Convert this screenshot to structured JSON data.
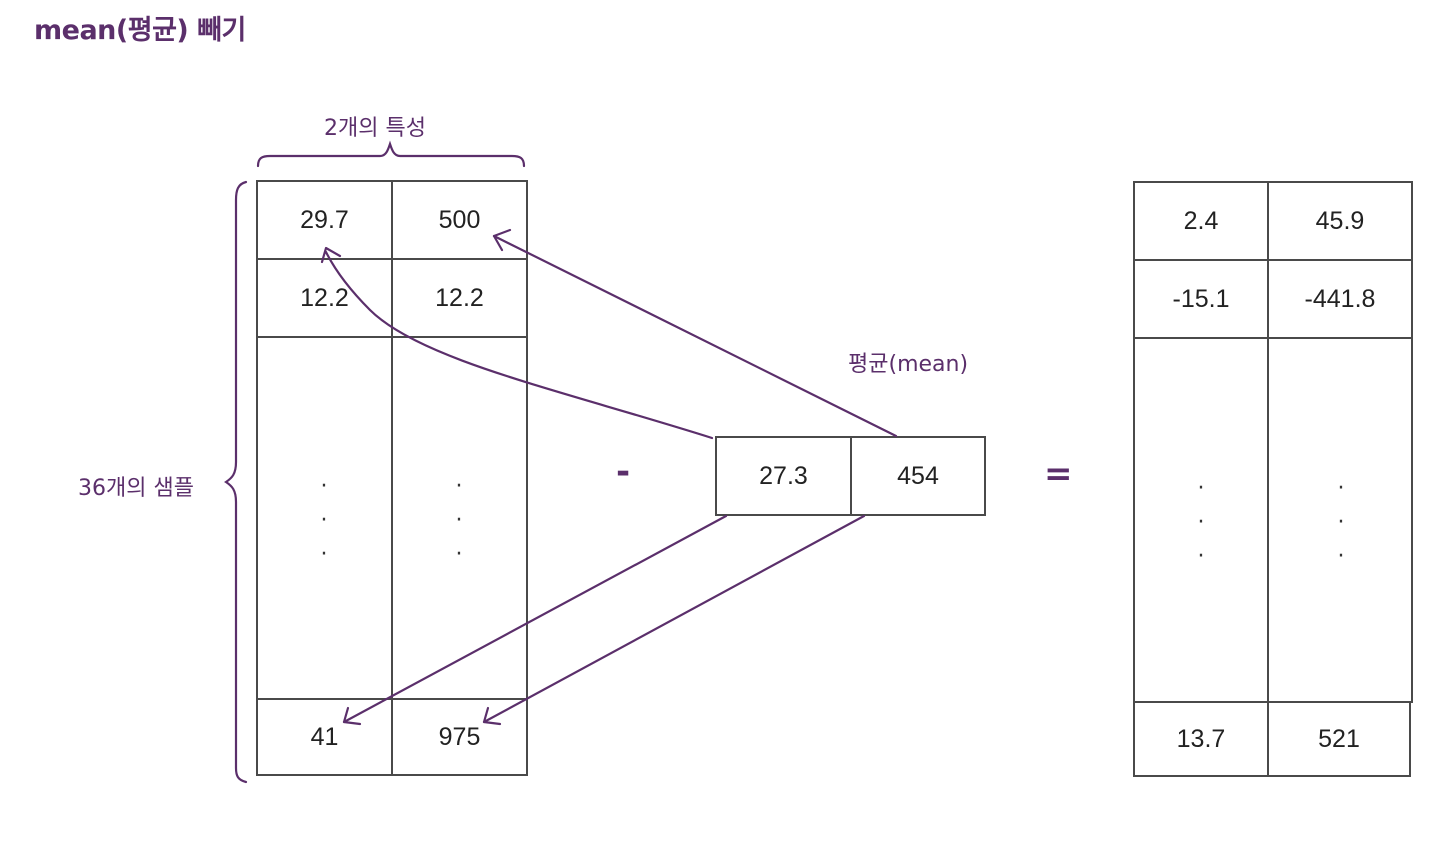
{
  "title": "mean(평균) 빼기",
  "labels": {
    "features": "2개의 특성",
    "samples": "36개의 샘플",
    "mean": "평균(mean)"
  },
  "operators": {
    "minus": "-",
    "equals": "="
  },
  "input_matrix": {
    "row1": [
      "29.7",
      "500"
    ],
    "row2": [
      "12.2",
      "12.2"
    ],
    "last_row": [
      "41",
      "975"
    ]
  },
  "mean_vector": [
    "27.3",
    "454"
  ],
  "result_matrix": {
    "row1": [
      "2.4",
      "45.9"
    ],
    "row2": [
      "-15.1",
      "-441.8"
    ],
    "last_row": [
      "13.7",
      "521"
    ]
  },
  "ellipsis": "·\n·\n·",
  "colors": {
    "accent": "#5b2f6b",
    "grid": "#4a4a4a"
  }
}
